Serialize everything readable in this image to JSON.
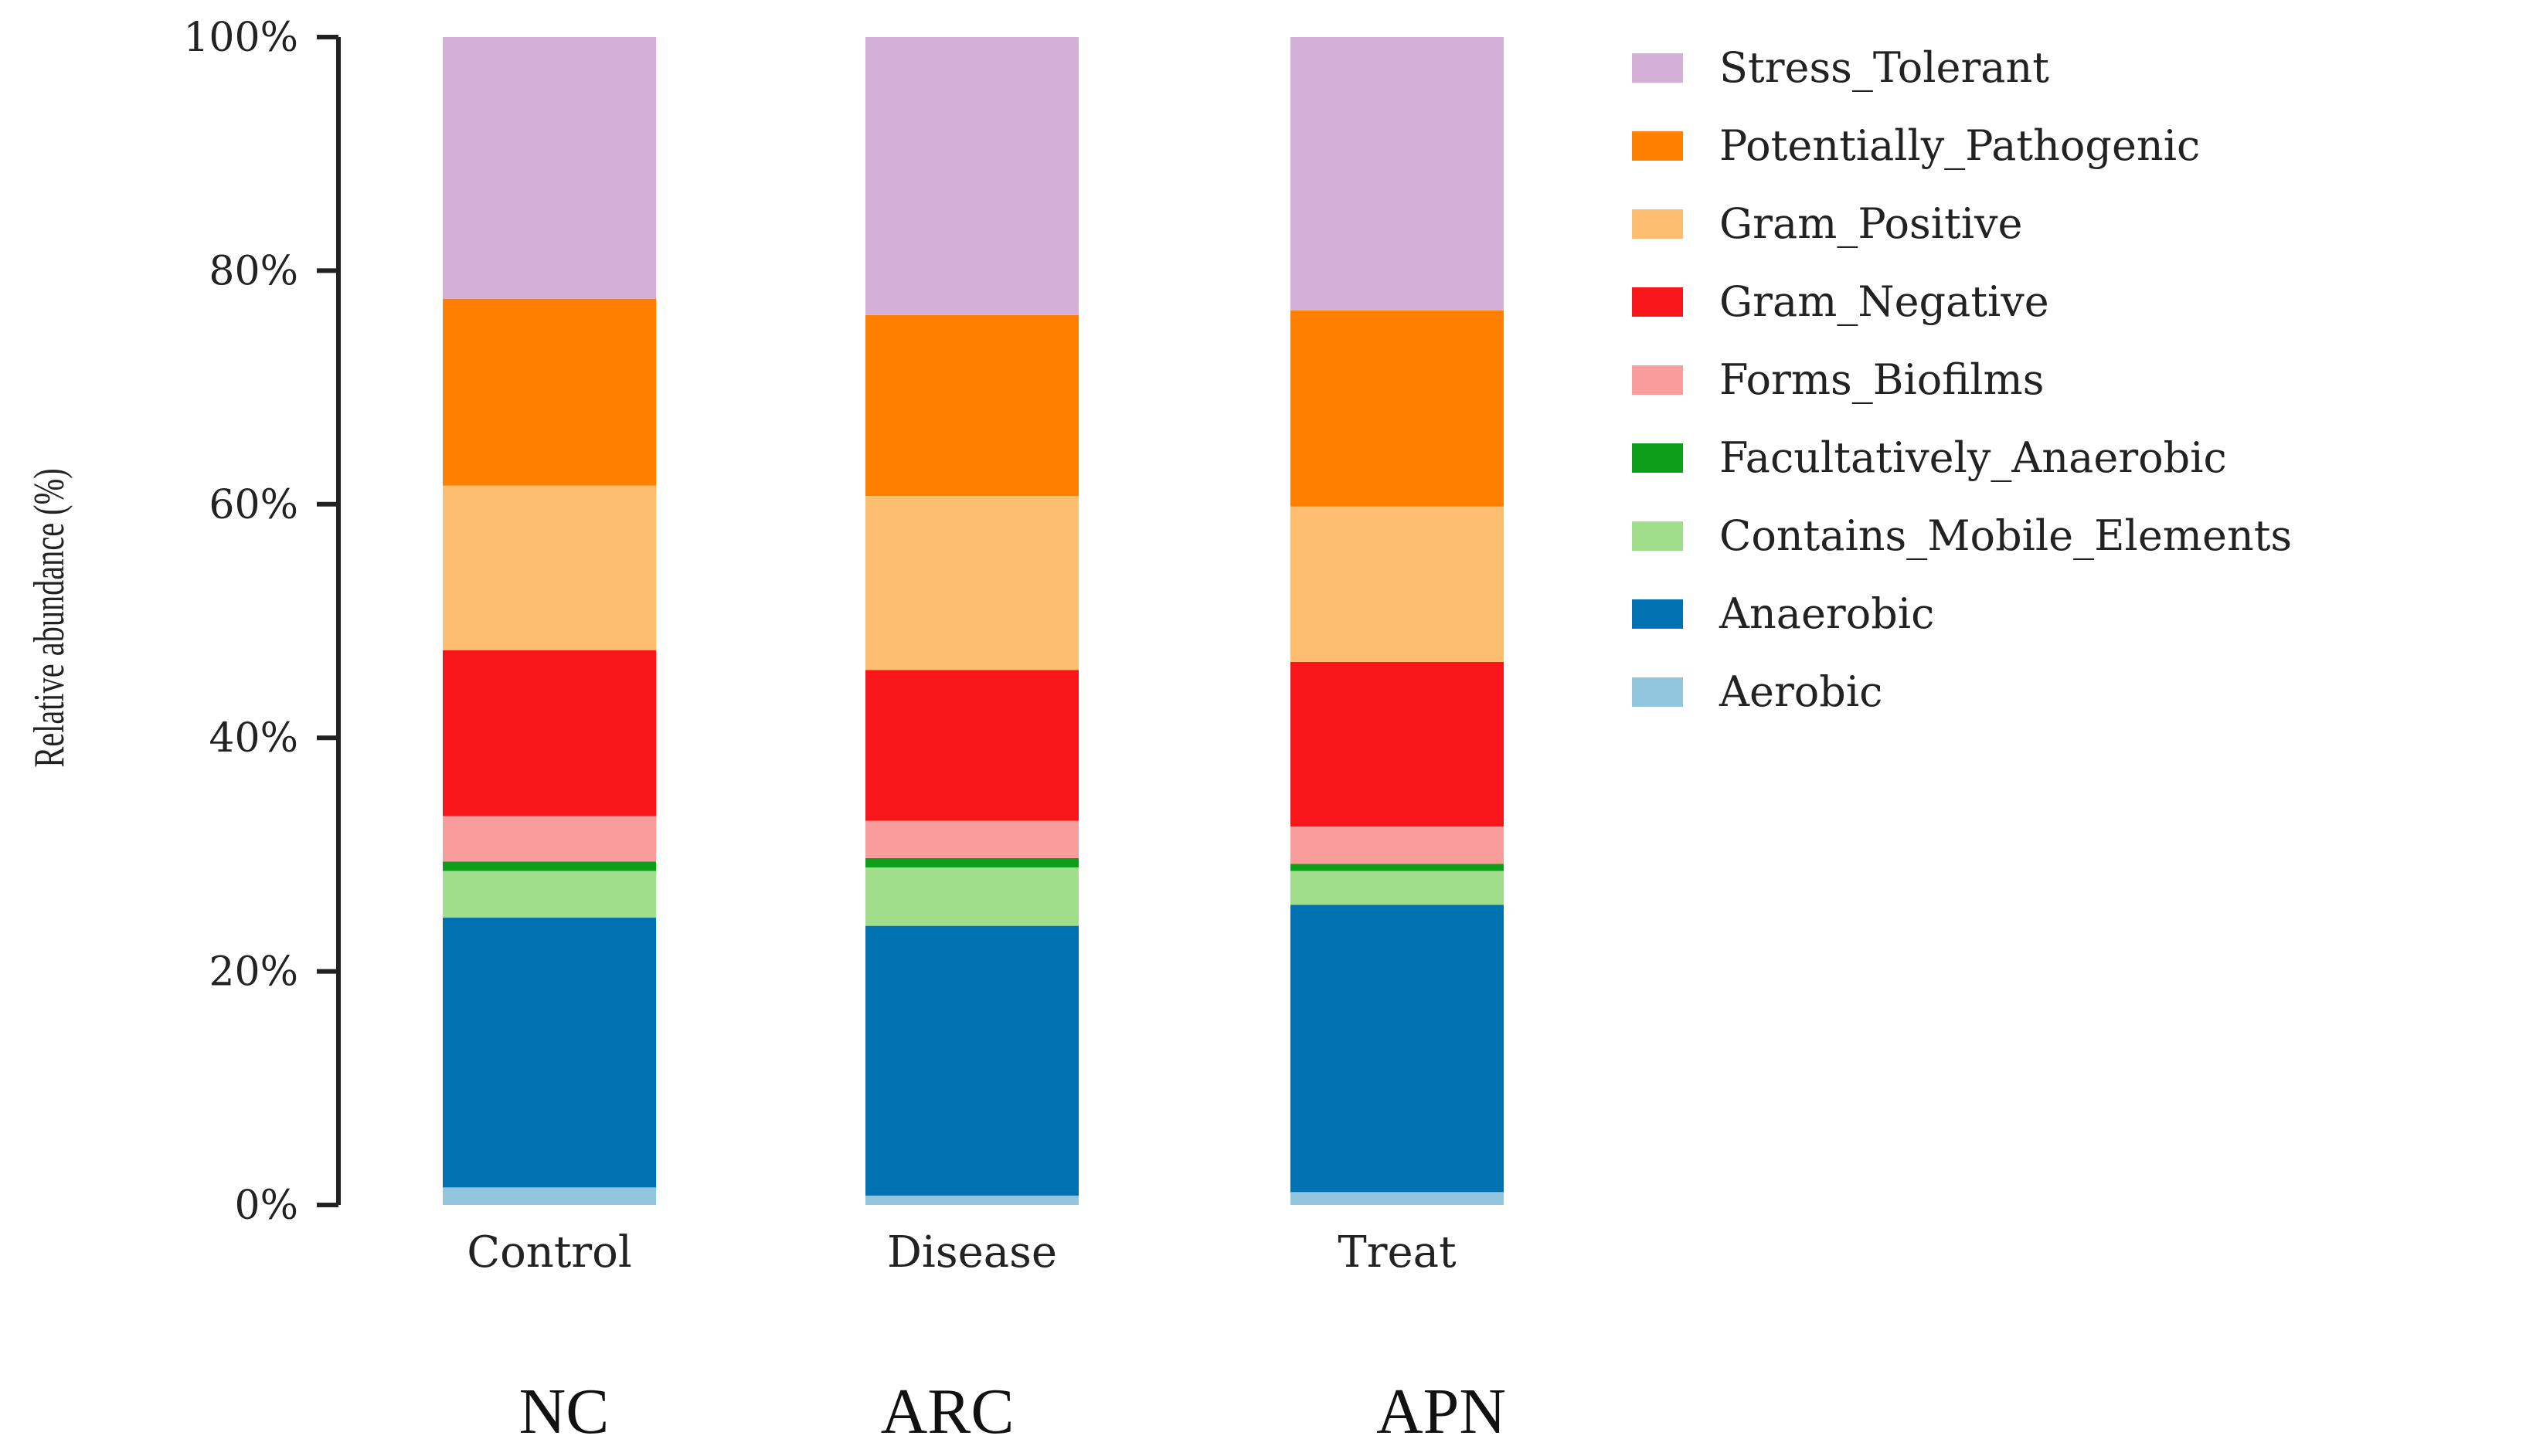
{
  "chart_data": {
    "type": "bar",
    "stacked": true,
    "ylabel": "Relative abundance (%)",
    "ylim": [
      0,
      100
    ],
    "yticks": [
      "0%",
      "20%",
      "40%",
      "60%",
      "80%",
      "100%"
    ],
    "categories": [
      "Control",
      "Disease",
      "Treat"
    ],
    "group_labels": [
      "NC",
      "ARC",
      "APN"
    ],
    "legend_position": "right",
    "series": [
      {
        "name": "Aerobic",
        "color": "#92C5DE",
        "values": [
          1.5,
          0.8,
          1.1
        ]
      },
      {
        "name": "Anaerobic",
        "color": "#0072B2",
        "values": [
          23.1,
          23.1,
          24.6
        ]
      },
      {
        "name": "Contains_Mobile_Elements",
        "color": "#A1DE8B",
        "values": [
          4.0,
          5.0,
          2.9
        ]
      },
      {
        "name": "Facultatively_Anaerobic",
        "color": "#0E9F1A",
        "values": [
          0.8,
          0.8,
          0.6
        ]
      },
      {
        "name": "Forms_Biofilms",
        "color": "#F99C9C",
        "values": [
          3.9,
          3.2,
          3.2
        ]
      },
      {
        "name": "Gram_Negative",
        "color": "#F9161A",
        "values": [
          14.2,
          12.9,
          14.1
        ]
      },
      {
        "name": "Gram_Positive",
        "color": "#FDBE70",
        "values": [
          14.1,
          14.9,
          13.3
        ]
      },
      {
        "name": "Potentially_Pathogenic",
        "color": "#FF8000",
        "values": [
          16.0,
          15.5,
          16.8
        ]
      },
      {
        "name": "Stress_Tolerant",
        "color": "#D4AFD8",
        "values": [
          22.4,
          23.8,
          23.4
        ]
      }
    ]
  }
}
